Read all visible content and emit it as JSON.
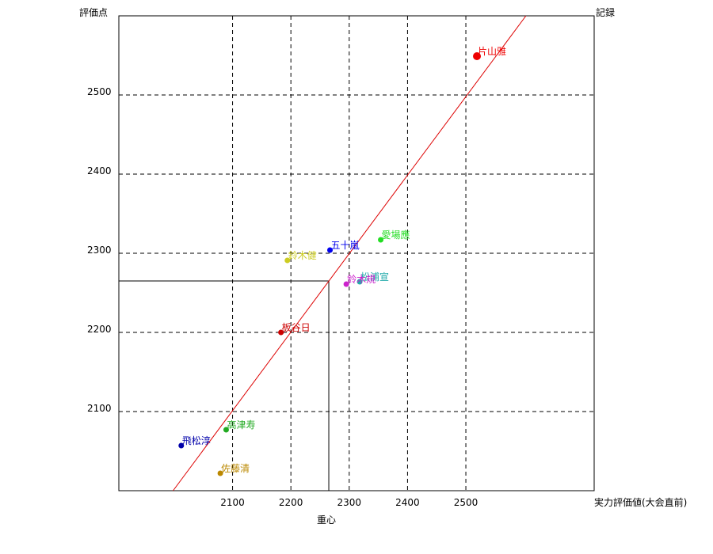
{
  "chart_data": {
    "type": "scatter",
    "title": "",
    "ylabel": "評価点",
    "y2label": "記録",
    "xlabel": "実力評価値(大会直前)",
    "center_label": "重心",
    "xlim": [
      1905,
      2720
    ],
    "ylim": [
      2000,
      2600
    ],
    "xticks": [
      2100,
      2200,
      2300,
      2400,
      2500
    ],
    "yticks": [
      2100,
      2200,
      2300,
      2400,
      2500
    ],
    "grid": true,
    "centroid": {
      "x": 2265,
      "y": 2265
    },
    "fit_line": {
      "x1": 1998,
      "y1": 2000,
      "x2": 2603,
      "y2": 2600,
      "color": "#dd0000"
    },
    "points": [
      {
        "name": "片山雅",
        "x": 2519,
        "y": 2549,
        "color": "#ee0000",
        "big": true
      },
      {
        "name": "愛場應",
        "x": 2354,
        "y": 2317,
        "color": "#22dd22"
      },
      {
        "name": "五十嵐",
        "x": 2267,
        "y": 2304,
        "color": "#0000ee"
      },
      {
        "name": "鈴木健",
        "x": 2194,
        "y": 2291,
        "color": "#cccc22"
      },
      {
        "name": "松浦宣",
        "x": 2318,
        "y": 2264,
        "color": "#22aaaa"
      },
      {
        "name": "鈴木規",
        "x": 2295,
        "y": 2261,
        "color": "#cc22cc"
      },
      {
        "name": "板谷日",
        "x": 2183,
        "y": 2200,
        "color": "#cc0000"
      },
      {
        "name": "高津寿",
        "x": 2089,
        "y": 2077,
        "color": "#22aa22"
      },
      {
        "name": "飛松淳",
        "x": 2012,
        "y": 2057,
        "color": "#0000aa"
      },
      {
        "name": "佐藤清",
        "x": 2079,
        "y": 2022,
        "color": "#bb8800"
      }
    ]
  }
}
